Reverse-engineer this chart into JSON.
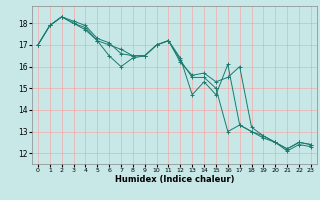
{
  "title": "",
  "xlabel": "Humidex (Indice chaleur)",
  "ylabel": "",
  "bg_color": "#c8e8e8",
  "grid_color": "#ff9999",
  "line_color": "#1a7a6e",
  "xlim": [
    -0.5,
    23.5
  ],
  "ylim": [
    11.5,
    18.8
  ],
  "yticks": [
    12,
    13,
    14,
    15,
    16,
    17,
    18
  ],
  "xticks": [
    0,
    1,
    2,
    3,
    4,
    5,
    6,
    7,
    8,
    9,
    10,
    11,
    12,
    13,
    14,
    15,
    16,
    17,
    18,
    19,
    20,
    21,
    22,
    23
  ],
  "series": [
    [
      17.0,
      17.9,
      18.3,
      18.0,
      17.7,
      17.2,
      16.5,
      16.0,
      16.4,
      16.5,
      17.0,
      17.2,
      16.4,
      14.7,
      15.3,
      14.7,
      16.1,
      13.3,
      13.0,
      12.7,
      12.5,
      12.1,
      12.4,
      12.3
    ],
    [
      17.0,
      17.9,
      18.3,
      18.0,
      17.8,
      17.2,
      17.0,
      16.8,
      16.5,
      16.5,
      17.0,
      17.2,
      16.3,
      15.5,
      15.5,
      15.0,
      13.0,
      13.3,
      13.0,
      12.8,
      12.5,
      12.2,
      12.5,
      12.4
    ],
    [
      17.0,
      17.9,
      18.3,
      18.1,
      17.9,
      17.3,
      17.1,
      16.6,
      16.5,
      16.5,
      17.0,
      17.2,
      16.2,
      15.6,
      15.7,
      15.3,
      15.5,
      16.0,
      13.2,
      12.8,
      12.5,
      12.2,
      12.5,
      12.4
    ]
  ]
}
